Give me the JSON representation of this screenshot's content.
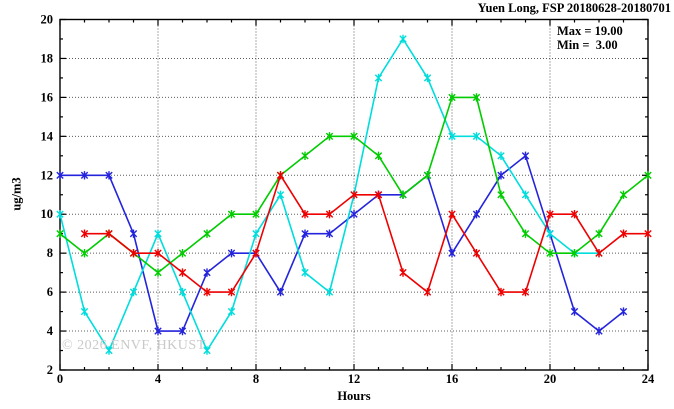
{
  "page": {
    "title": "Yuen Long, FSP 20180628-20180701",
    "watermark": "© 2026 ENVF, HKUST",
    "legend": {
      "max_label": "Max = 19.00",
      "min_label": "Min =  3.00"
    }
  },
  "chart_data": {
    "type": "line",
    "title": "Yuen Long, FSP 20180628-20180701",
    "xlabel": "Hours",
    "ylabel": "ug/m3",
    "xlim": [
      0,
      24
    ],
    "ylim": [
      2,
      20
    ],
    "x_major_ticks": [
      0,
      4,
      8,
      12,
      16,
      20,
      24
    ],
    "y_major_ticks": [
      2,
      4,
      6,
      8,
      10,
      12,
      14,
      16,
      18,
      20
    ],
    "x_minor_step": 1,
    "y_minor_step": 1,
    "grid": {
      "x_at": [
        4,
        8,
        12,
        16,
        20
      ],
      "y_at": [
        4,
        6,
        8,
        10,
        12,
        14,
        16,
        18
      ]
    },
    "stats": {
      "max": 19.0,
      "min": 3.0
    },
    "legend_position": "top-right-inside",
    "x": [
      0,
      1,
      2,
      3,
      4,
      5,
      6,
      7,
      8,
      9,
      10,
      11,
      12,
      13,
      14,
      15,
      16,
      17,
      18,
      19,
      20,
      21,
      22,
      23,
      24
    ],
    "series": [
      {
        "name": "series-blue",
        "color": "#2424dd",
        "values": [
          12,
          12,
          12,
          9,
          4,
          4,
          7,
          8,
          8,
          6,
          9,
          9,
          10,
          11,
          11,
          12,
          8,
          10,
          12,
          13,
          9,
          5,
          4,
          5,
          null
        ]
      },
      {
        "name": "series-cyan",
        "color": "#00dddd",
        "values": [
          10,
          5,
          3,
          6,
          9,
          6,
          3,
          5,
          9,
          11,
          7,
          6,
          11,
          17,
          19,
          17,
          14,
          14,
          13,
          11,
          9,
          8,
          8,
          null,
          null
        ]
      },
      {
        "name": "series-green",
        "color": "#00cc00",
        "values": [
          9,
          8,
          9,
          8,
          7,
          8,
          9,
          10,
          10,
          12,
          13,
          14,
          14,
          13,
          11,
          12,
          16,
          16,
          11,
          9,
          8,
          8,
          9,
          11,
          12
        ]
      },
      {
        "name": "series-red",
        "color": "#ee0000",
        "values": [
          null,
          9,
          9,
          8,
          8,
          7,
          6,
          6,
          8,
          12,
          10,
          10,
          11,
          11,
          7,
          6,
          10,
          8,
          6,
          6,
          10,
          10,
          8,
          9,
          9
        ]
      }
    ]
  }
}
